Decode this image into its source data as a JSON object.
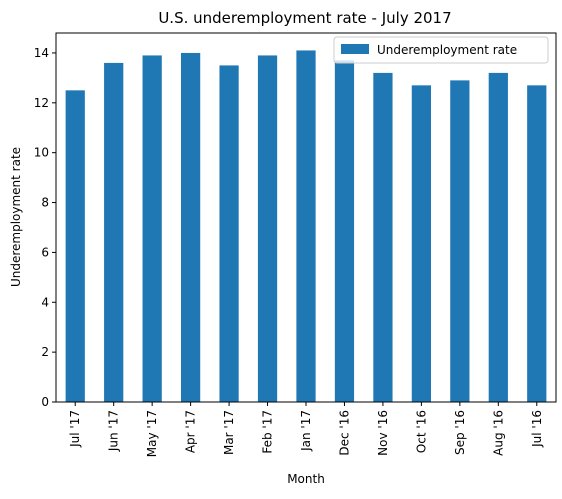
{
  "chart_data": {
    "type": "bar",
    "title": "U.S. underemployment rate - July 2017",
    "xlabel": "Month",
    "ylabel": "Underemployment rate",
    "categories": [
      "Jul '17",
      "Jun '17",
      "May '17",
      "Apr '17",
      "Mar '17",
      "Feb '17",
      "Jan '17",
      "Dec '16",
      "Nov '16",
      "Oct '16",
      "Sep '16",
      "Aug '16",
      "Jul '16"
    ],
    "series": [
      {
        "name": "Underemployment rate",
        "values": [
          12.5,
          13.6,
          13.9,
          14.0,
          13.5,
          13.9,
          14.1,
          13.7,
          13.2,
          12.7,
          12.9,
          13.2,
          12.7
        ],
        "color": "#1f77b4"
      }
    ],
    "ylim": [
      0,
      14.8
    ],
    "yticks": [
      0,
      2,
      4,
      6,
      8,
      10,
      12,
      14
    ],
    "grid": false,
    "legend_position": "top-right"
  }
}
